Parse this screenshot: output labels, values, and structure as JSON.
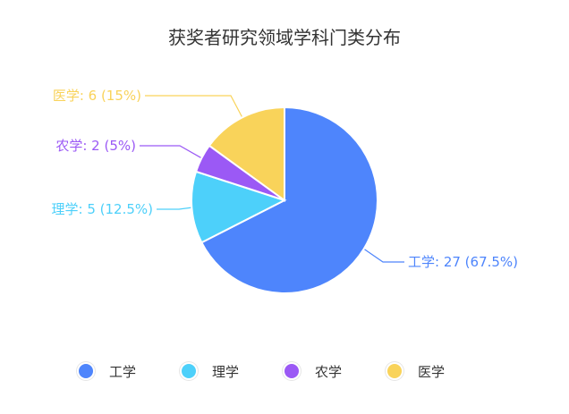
{
  "chart_data": {
    "type": "pie",
    "title": "获奖者研究领域学科门类分布",
    "slices": [
      {
        "name": "工学",
        "value": 27,
        "percent": "67.5%",
        "color": "#4e85fc",
        "label": "工学: 27 (67.5%)"
      },
      {
        "name": "理学",
        "value": 5,
        "percent": "12.5%",
        "color": "#4dd0fa",
        "label": "理学: 5 (12.5%)"
      },
      {
        "name": "农学",
        "value": 2,
        "percent": "5%",
        "color": "#9b59f5",
        "label": "农学: 2 (5%)"
      },
      {
        "name": "医学",
        "value": 6,
        "percent": "15%",
        "color": "#f9d35a",
        "label": "医学: 6 (15%)"
      }
    ],
    "legend_position": "bottom"
  }
}
